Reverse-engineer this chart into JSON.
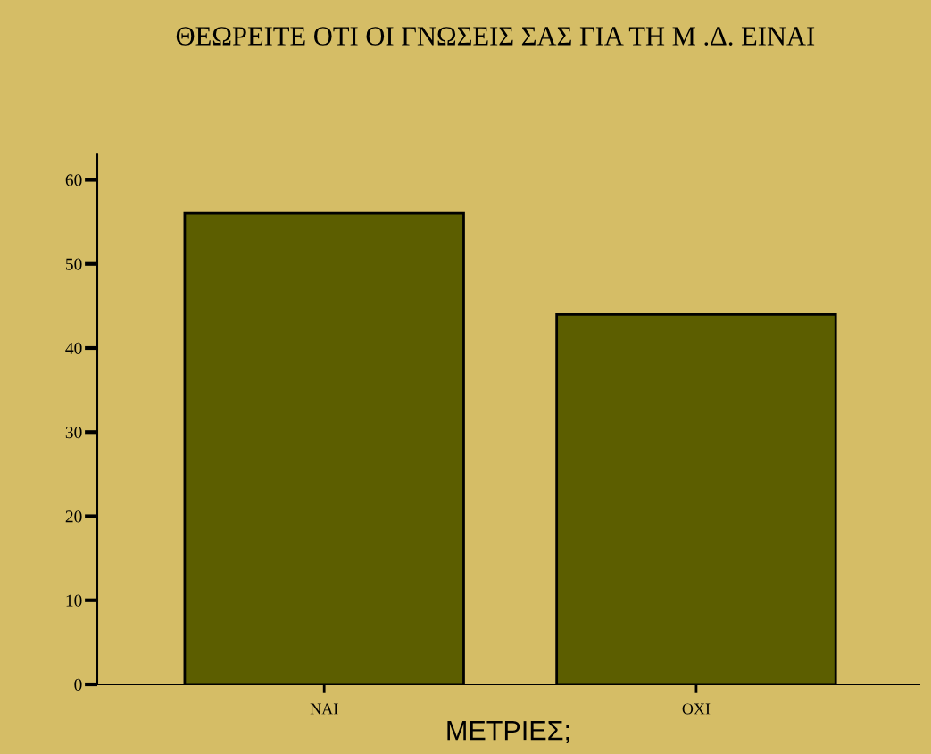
{
  "chart_data": {
    "type": "bar",
    "title": "ΘΕΩΡΕΙΤΕ ΟΤΙ ΟΙ ΓΝΩΣΕΙΣ ΣΑΣ ΓΙΑ ΤΗ Μ .Δ. ΕΙΝΑΙ",
    "xlabel": "ΜΕΤΡΙΕΣ;",
    "categories": [
      "ΝΑΙ",
      "ΟΧΙ"
    ],
    "values": [
      56,
      44
    ],
    "color": "#5c5e00",
    "ylim": [
      0,
      63
    ],
    "yticks": [
      0,
      10,
      20,
      30,
      40,
      50,
      60
    ],
    "grid": false
  }
}
